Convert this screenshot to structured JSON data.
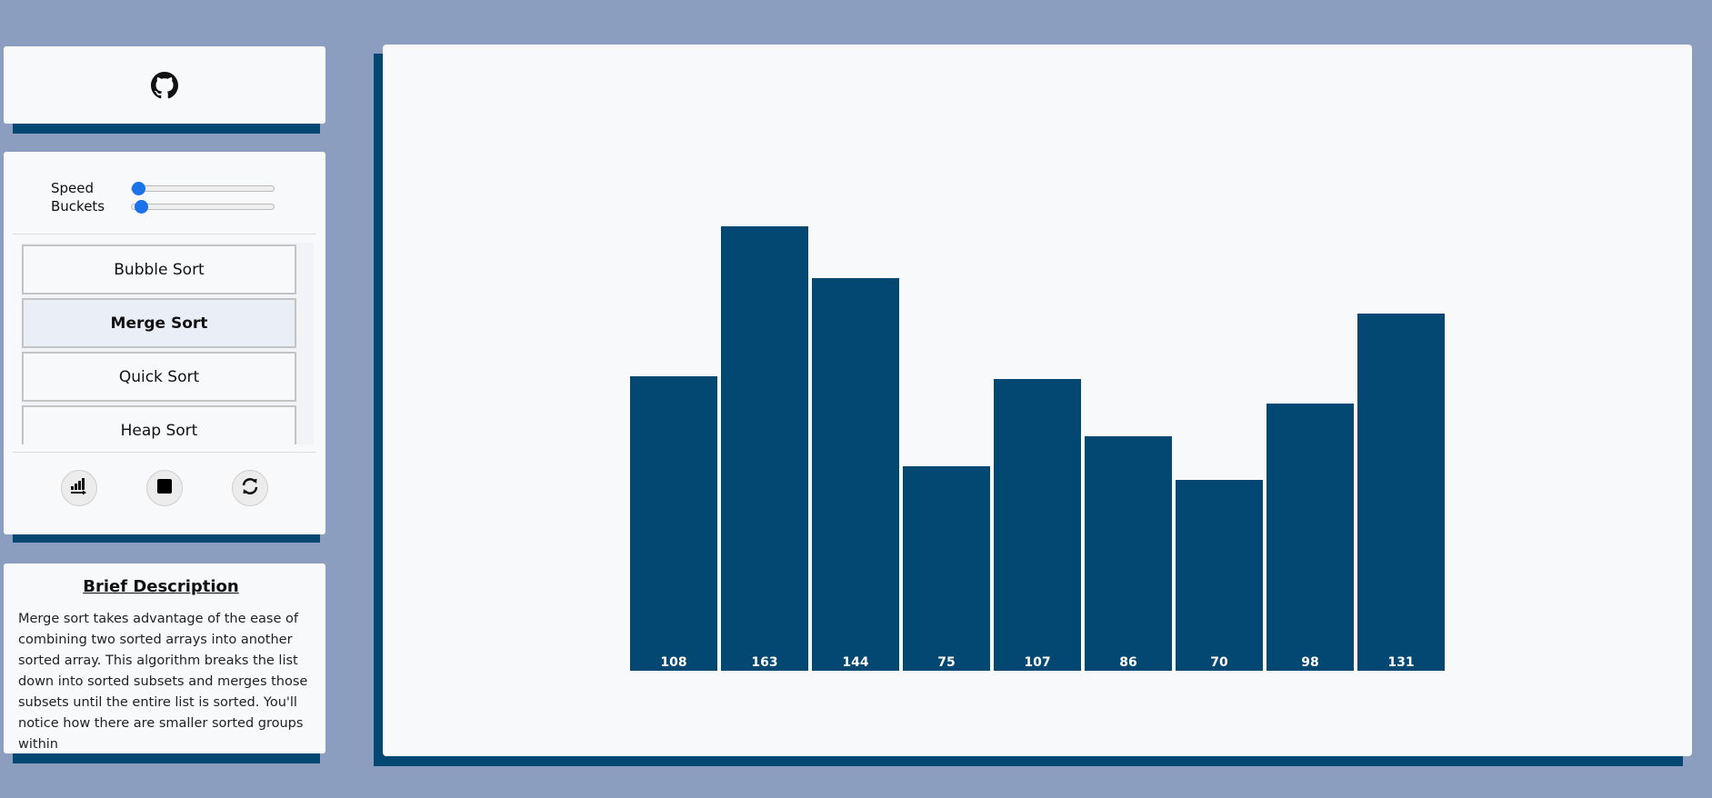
{
  "header": {
    "github_icon": "github-icon"
  },
  "controls": {
    "speed_label": "Speed",
    "speed_value": 0,
    "buckets_label": "Buckets",
    "buckets_value": 0.03,
    "algorithms": [
      {
        "label": "Bubble Sort",
        "active": false
      },
      {
        "label": "Merge Sort",
        "active": true
      },
      {
        "label": "Quick Sort",
        "active": false
      },
      {
        "label": "Heap Sort",
        "active": false
      }
    ],
    "actions": [
      {
        "icon": "sort-ascending-icon"
      },
      {
        "icon": "stop-icon"
      },
      {
        "icon": "refresh-icon"
      }
    ]
  },
  "description": {
    "title": "Brief Description",
    "text": "Merge sort takes advantage of the ease of combining two sorted arrays into another sorted array. This algorithm breaks the list down into sorted subsets and merges those subsets until the entire list is sorted. You'll notice how there are smaller sorted groups within"
  },
  "colors": {
    "background": "#8c9ebf",
    "bar": "#034872",
    "card": "#f8f9fb",
    "accent": "#1a73e8"
  },
  "chart_data": {
    "type": "bar",
    "categories": [
      "108",
      "163",
      "144",
      "75",
      "107",
      "86",
      "70",
      "98",
      "131"
    ],
    "values": [
      108,
      163,
      144,
      75,
      107,
      86,
      70,
      98,
      131
    ],
    "ylim": [
      0,
      180
    ],
    "grid": false
  }
}
